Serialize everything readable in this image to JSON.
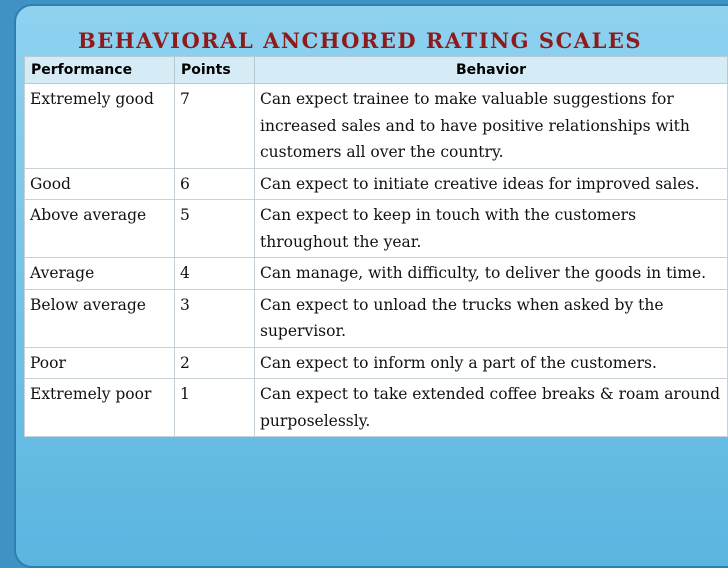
{
  "header": {
    "title": "BEHAVIORAL ANCHORED RATING SCALES"
  },
  "table": {
    "columns": [
      "Performance",
      "Points",
      "Behavior"
    ],
    "rows": [
      [
        "Extremely good",
        7,
        "Can expect trainee to make valuable suggestions for increased sales and to have positive relationships with customers all over the country."
      ],
      [
        "Good",
        6,
        "Can expect to initiate creative ideas for improved sales."
      ],
      [
        "Above average",
        5,
        "Can expect to keep in touch with the customers throughout the year."
      ],
      [
        "Average",
        4,
        "Can manage, with difficulty, to deliver the goods in time."
      ],
      [
        "Below average",
        3,
        "Can expect to unload the trucks when asked by the supervisor."
      ],
      [
        "Poor",
        2,
        "Can expect to inform only a part of the customers."
      ],
      [
        "Extremely poor",
        1,
        "Can expect to take extended coffee breaks & roam around purposelessly."
      ]
    ]
  }
}
